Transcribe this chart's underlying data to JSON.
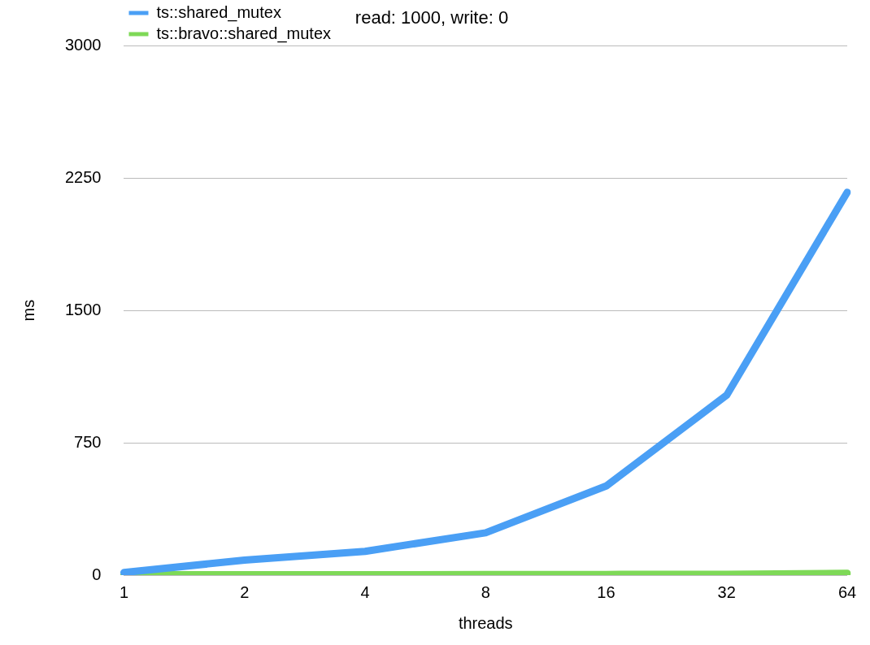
{
  "chart_data": {
    "type": "line",
    "title": "read: 1000, write: 0",
    "xlabel": "threads",
    "ylabel": "ms",
    "categories": [
      "1",
      "2",
      "4",
      "8",
      "16",
      "32",
      "64"
    ],
    "series": [
      {
        "name": "ts::shared_mutex",
        "color": "#4a9ff5",
        "values": [
          15,
          85,
          135,
          240,
          505,
          1020,
          2170
        ]
      },
      {
        "name": "ts::bravo::shared_mutex",
        "color": "#7ed957",
        "values": [
          2,
          2,
          2,
          3,
          4,
          5,
          10
        ]
      }
    ],
    "ylim": [
      0,
      3000
    ],
    "yticks": [
      0,
      750,
      1500,
      2250,
      3000
    ],
    "grid": "y",
    "legend": "top left",
    "marker": "none",
    "line_style": "solid"
  }
}
